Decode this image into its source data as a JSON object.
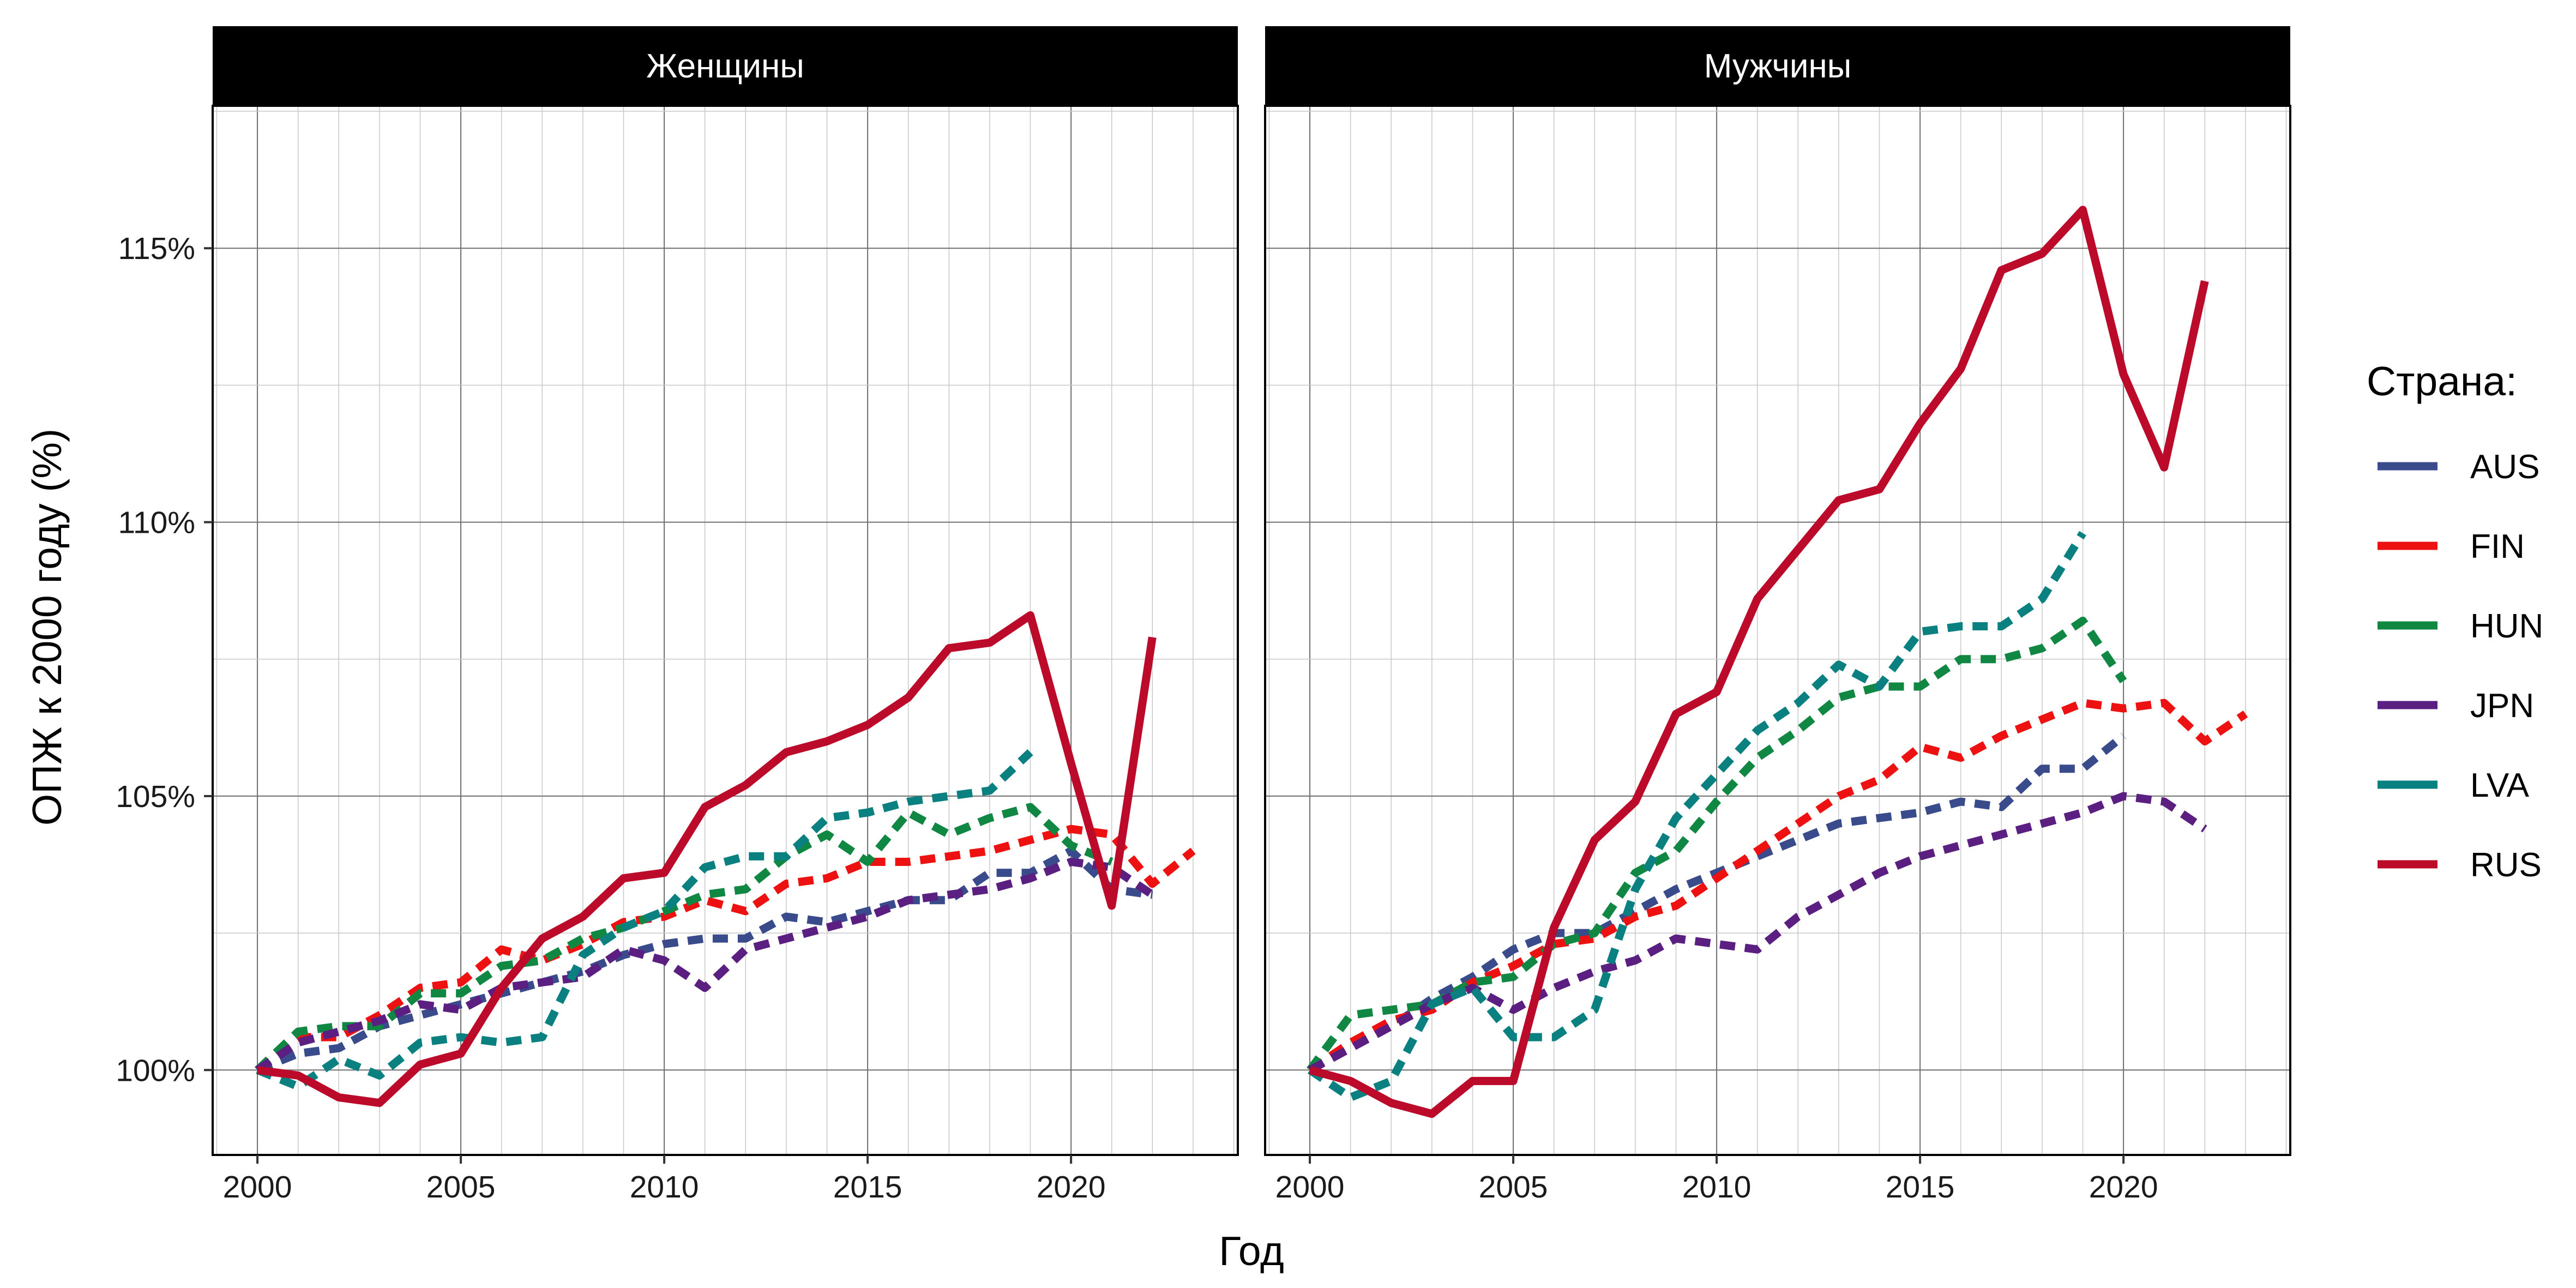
{
  "chart_data": {
    "type": "line",
    "xlabel": "Год",
    "ylabel": "ОПЖ к 2000 году (%)",
    "xlim": [
      1998.9,
      2024.1
    ],
    "ylim": [
      98.45,
      117.6
    ],
    "x_ticks": [
      2000,
      2005,
      2010,
      2015,
      2020
    ],
    "x_tick_labels": [
      "2000",
      "2005",
      "2010",
      "2015",
      "2020"
    ],
    "y_ticks": [
      100,
      105,
      110,
      115
    ],
    "y_tick_labels": [
      "100%",
      "105%",
      "110%",
      "115%"
    ],
    "grid": true,
    "legend": {
      "title": "Страна:",
      "position": "right",
      "items": [
        {
          "label": "AUS",
          "color": "#3a4b8c"
        },
        {
          "label": "FIN",
          "color": "#ee1111"
        },
        {
          "label": "HUN",
          "color": "#108844"
        },
        {
          "label": "JPN",
          "color": "#5a1f80"
        },
        {
          "label": "LVA",
          "color": "#0a8080"
        },
        {
          "label": "RUS",
          "color": "#bb0a2a"
        }
      ]
    },
    "panels": [
      {
        "title": "Женщины",
        "series": [
          {
            "name": "AUS",
            "dash": true,
            "x": [
              2000,
              2001,
              2002,
              2003,
              2004,
              2005,
              2006,
              2007,
              2008,
              2009,
              2010,
              2011,
              2012,
              2013,
              2014,
              2015,
              2016,
              2017,
              2018,
              2019,
              2020,
              2021,
              2022
            ],
            "values": [
              100,
              100.3,
              100.4,
              100.8,
              101.0,
              101.2,
              101.4,
              101.6,
              101.8,
              102.1,
              102.3,
              102.4,
              102.4,
              102.8,
              102.7,
              102.9,
              103.1,
              103.1,
              103.6,
              103.6,
              104.0,
              103.3,
              103.2
            ]
          },
          {
            "name": "FIN",
            "dash": true,
            "x": [
              2000,
              2001,
              2002,
              2003,
              2004,
              2005,
              2006,
              2007,
              2008,
              2009,
              2010,
              2011,
              2012,
              2013,
              2014,
              2015,
              2016,
              2017,
              2018,
              2019,
              2020,
              2021,
              2022,
              2023
            ],
            "values": [
              100,
              100.6,
              100.6,
              101.0,
              101.5,
              101.6,
              102.2,
              102.0,
              102.3,
              102.7,
              102.8,
              103.1,
              102.9,
              103.4,
              103.5,
              103.8,
              103.8,
              103.9,
              104.0,
              104.2,
              104.4,
              104.3,
              103.4,
              104.0
            ]
          },
          {
            "name": "HUN",
            "dash": true,
            "x": [
              2000,
              2001,
              2002,
              2003,
              2004,
              2005,
              2006,
              2007,
              2008,
              2009,
              2010,
              2011,
              2012,
              2013,
              2014,
              2015,
              2016,
              2017,
              2018,
              2019,
              2020,
              2021
            ],
            "values": [
              100,
              100.7,
              100.8,
              100.8,
              101.4,
              101.4,
              101.9,
              102.0,
              102.4,
              102.6,
              102.9,
              103.2,
              103.3,
              103.9,
              104.3,
              103.8,
              104.7,
              104.3,
              104.6,
              104.8,
              104.1,
              103.8
            ]
          },
          {
            "name": "JPN",
            "dash": true,
            "x": [
              2000,
              2001,
              2002,
              2003,
              2004,
              2005,
              2006,
              2007,
              2008,
              2009,
              2010,
              2011,
              2012,
              2013,
              2014,
              2015,
              2016,
              2017,
              2018,
              2019,
              2020,
              2021,
              2022
            ],
            "values": [
              100,
              100.5,
              100.7,
              100.9,
              101.2,
              101.1,
              101.5,
              101.6,
              101.7,
              102.2,
              102.0,
              101.5,
              102.2,
              102.4,
              102.6,
              102.8,
              103.1,
              103.2,
              103.3,
              103.5,
              103.8,
              103.7,
              103.2
            ]
          },
          {
            "name": "LVA",
            "dash": true,
            "x": [
              2000,
              2001,
              2002,
              2003,
              2004,
              2005,
              2006,
              2007,
              2008,
              2009,
              2010,
              2011,
              2012,
              2013,
              2014,
              2015,
              2016,
              2017,
              2018,
              2019
            ],
            "values": [
              100,
              99.7,
              100.2,
              99.9,
              100.5,
              100.6,
              100.5,
              100.6,
              102.1,
              102.6,
              102.9,
              103.7,
              103.9,
              103.9,
              104.6,
              104.7,
              104.9,
              105.0,
              105.1,
              105.8
            ]
          },
          {
            "name": "RUS",
            "dash": false,
            "x": [
              2000,
              2001,
              2002,
              2003,
              2004,
              2005,
              2006,
              2007,
              2008,
              2009,
              2010,
              2011,
              2012,
              2013,
              2014,
              2015,
              2016,
              2017,
              2018,
              2019,
              2020,
              2021,
              2022
            ],
            "values": [
              100,
              99.9,
              99.5,
              99.4,
              100.1,
              100.3,
              101.5,
              102.4,
              102.8,
              103.5,
              103.6,
              104.8,
              105.2,
              105.8,
              106.0,
              106.3,
              106.8,
              107.7,
              107.8,
              108.3,
              105.6,
              103.0,
              107.9
            ]
          }
        ]
      },
      {
        "title": "Мужчины",
        "series": [
          {
            "name": "AUS",
            "dash": true,
            "x": [
              2000,
              2001,
              2002,
              2003,
              2004,
              2005,
              2006,
              2007,
              2008,
              2009,
              2010,
              2011,
              2012,
              2013,
              2014,
              2015,
              2016,
              2017,
              2018,
              2019,
              2020
            ],
            "values": [
              100,
              100.4,
              100.8,
              101.3,
              101.7,
              102.2,
              102.5,
              102.5,
              102.9,
              103.3,
              103.6,
              103.9,
              104.2,
              104.5,
              104.6,
              104.7,
              104.9,
              104.8,
              105.5,
              105.5,
              106.1
            ]
          },
          {
            "name": "FIN",
            "dash": true,
            "x": [
              2000,
              2001,
              2002,
              2003,
              2004,
              2005,
              2006,
              2007,
              2008,
              2009,
              2010,
              2011,
              2012,
              2013,
              2014,
              2015,
              2016,
              2017,
              2018,
              2019,
              2020,
              2021,
              2022,
              2023
            ],
            "values": [
              100,
              100.5,
              100.9,
              101.1,
              101.6,
              101.9,
              102.3,
              102.4,
              102.8,
              103.0,
              103.5,
              104.0,
              104.5,
              105.0,
              105.3,
              105.9,
              105.7,
              106.1,
              106.4,
              106.7,
              106.6,
              106.7,
              106.0,
              106.5
            ]
          },
          {
            "name": "HUN",
            "dash": true,
            "x": [
              2000,
              2001,
              2002,
              2003,
              2004,
              2005,
              2006,
              2007,
              2008,
              2009,
              2010,
              2011,
              2012,
              2013,
              2014,
              2015,
              2016,
              2017,
              2018,
              2019,
              2020
            ],
            "values": [
              100,
              101.0,
              101.1,
              101.2,
              101.6,
              101.7,
              102.3,
              102.5,
              103.6,
              104.0,
              104.9,
              105.7,
              106.2,
              106.8,
              107.0,
              107.0,
              107.5,
              107.5,
              107.7,
              108.2,
              107.1
            ]
          },
          {
            "name": "JPN",
            "dash": true,
            "x": [
              2000,
              2001,
              2002,
              2003,
              2004,
              2005,
              2006,
              2007,
              2008,
              2009,
              2010,
              2011,
              2012,
              2013,
              2014,
              2015,
              2016,
              2017,
              2018,
              2019,
              2020,
              2021,
              2022
            ],
            "values": [
              100,
              100.4,
              100.8,
              101.2,
              101.5,
              101.1,
              101.5,
              101.8,
              102.0,
              102.4,
              102.3,
              102.2,
              102.8,
              103.2,
              103.6,
              103.9,
              104.1,
              104.3,
              104.5,
              104.7,
              105.0,
              104.9,
              104.4
            ]
          },
          {
            "name": "LVA",
            "dash": true,
            "x": [
              2000,
              2001,
              2002,
              2003,
              2004,
              2005,
              2006,
              2007,
              2008,
              2009,
              2010,
              2011,
              2012,
              2013,
              2014,
              2015,
              2016,
              2017,
              2018,
              2019
            ],
            "values": [
              100,
              99.5,
              99.8,
              101.2,
              101.5,
              100.6,
              100.6,
              101.1,
              103.3,
              104.6,
              105.4,
              106.2,
              106.7,
              107.4,
              107.0,
              108.0,
              108.1,
              108.1,
              108.6,
              109.8
            ]
          },
          {
            "name": "RUS",
            "dash": false,
            "x": [
              2000,
              2001,
              2002,
              2003,
              2004,
              2005,
              2006,
              2007,
              2008,
              2009,
              2010,
              2011,
              2012,
              2013,
              2014,
              2015,
              2016,
              2017,
              2018,
              2019,
              2020,
              2021,
              2022
            ],
            "values": [
              100,
              99.8,
              99.4,
              99.2,
              99.8,
              99.8,
              102.6,
              104.2,
              104.9,
              106.5,
              106.9,
              108.6,
              109.5,
              110.4,
              110.6,
              111.8,
              112.8,
              114.6,
              114.9,
              115.7,
              112.7,
              111.0,
              114.4
            ]
          }
        ]
      }
    ]
  }
}
